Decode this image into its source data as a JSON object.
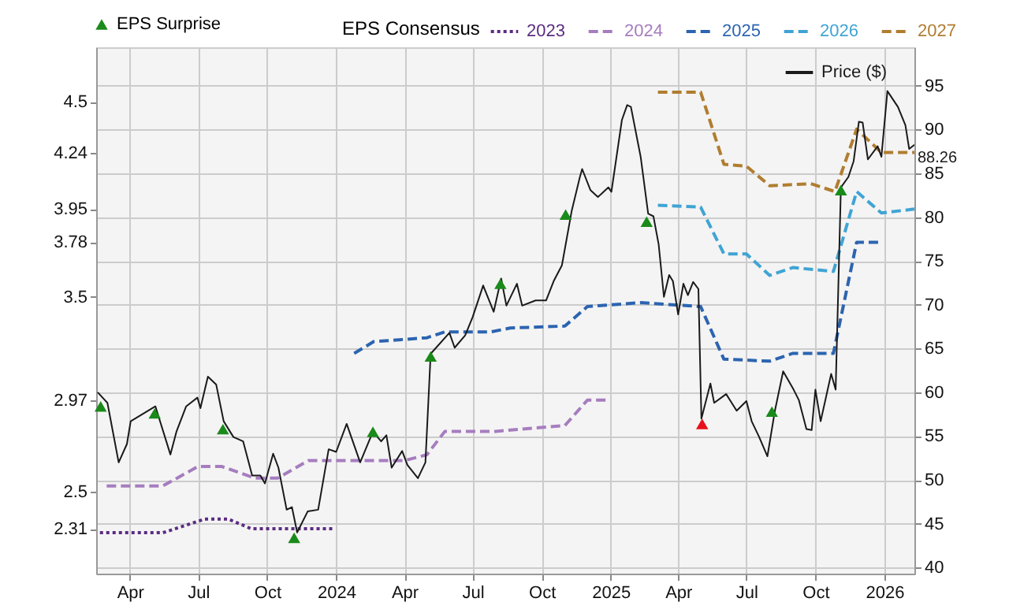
{
  "chart_data": {
    "type": "line",
    "legend": "top",
    "grid": true,
    "legend_title": "EPS Consensus",
    "xlim": [
      "2023-02-15",
      "2026-02-10"
    ],
    "xticks": [
      {
        "value": "2023-04-01",
        "label": "Apr"
      },
      {
        "value": "2023-07-01",
        "label": "Jul"
      },
      {
        "value": "2023-10-01",
        "label": "Oct"
      },
      {
        "value": "2024-01-01",
        "label": "2024"
      },
      {
        "value": "2024-04-01",
        "label": "Apr"
      },
      {
        "value": "2024-07-01",
        "label": "Jul"
      },
      {
        "value": "2024-10-01",
        "label": "Oct"
      },
      {
        "value": "2025-01-01",
        "label": "2025"
      },
      {
        "value": "2025-04-01",
        "label": "Apr"
      },
      {
        "value": "2025-07-01",
        "label": "Jul"
      },
      {
        "value": "2025-10-01",
        "label": "Oct"
      },
      {
        "value": "2026-01-01",
        "label": "2026"
      }
    ],
    "ylim": [
      2.08,
      4.78
    ],
    "yticks": [
      2.31,
      2.5,
      2.97,
      3.5,
      3.78,
      3.95,
      4.24,
      4.5
    ],
    "y2lim": [
      39.3,
      99.4
    ],
    "y2ticks": [
      40,
      45,
      50,
      55,
      60,
      65,
      70,
      75,
      80,
      85,
      90,
      95
    ],
    "series": [
      {
        "name": "2023",
        "type": "line",
        "line_style": "dotted",
        "color": "#5b2c82",
        "x": [
          "2023-02-20",
          "2023-05-15",
          "2023-07-10",
          "2023-08-10",
          "2023-09-10",
          "2023-12-28"
        ],
        "values": [
          2.29,
          2.29,
          2.36,
          2.36,
          2.31,
          2.31
        ]
      },
      {
        "name": "2024",
        "type": "line",
        "line_style": "dashed",
        "color": "#a67dbf",
        "x": [
          "2023-03-01",
          "2023-05-15",
          "2023-07-01",
          "2023-08-01",
          "2023-09-15",
          "2023-10-15",
          "2023-11-25",
          "2024-04-01",
          "2024-05-01",
          "2024-05-25",
          "2024-08-01",
          "2024-11-01",
          "2024-12-01",
          "2024-12-31"
        ],
        "values": [
          2.53,
          2.53,
          2.63,
          2.63,
          2.57,
          2.57,
          2.66,
          2.66,
          2.69,
          2.81,
          2.81,
          2.84,
          2.97,
          2.97
        ]
      },
      {
        "name": "2025",
        "type": "line",
        "line_style": "dashed",
        "color": "#2c64b0",
        "x": [
          "2024-01-25",
          "2024-02-20",
          "2024-05-01",
          "2024-05-25",
          "2024-07-25",
          "2024-08-20",
          "2024-11-01",
          "2024-12-01",
          "2025-02-10",
          "2025-05-01",
          "2025-06-01",
          "2025-08-01",
          "2025-09-01",
          "2025-10-25",
          "2025-11-25",
          "2025-12-28"
        ],
        "values": [
          3.21,
          3.27,
          3.29,
          3.32,
          3.32,
          3.34,
          3.35,
          3.45,
          3.47,
          3.45,
          3.18,
          3.17,
          3.21,
          3.21,
          3.78,
          3.78
        ]
      },
      {
        "name": "2026",
        "type": "line",
        "line_style": "dashed",
        "color": "#3fa4d4",
        "x": [
          "2025-03-05",
          "2025-05-01",
          "2025-06-01",
          "2025-07-01",
          "2025-08-01",
          "2025-09-01",
          "2025-10-25",
          "2025-11-25",
          "2025-12-28",
          "2026-02-10"
        ],
        "values": [
          3.97,
          3.96,
          3.72,
          3.72,
          3.61,
          3.65,
          3.63,
          4.04,
          3.93,
          3.95
        ]
      },
      {
        "name": "2027",
        "type": "line",
        "line_style": "dashed",
        "color": "#b07d30",
        "x": [
          "2025-03-05",
          "2025-05-01",
          "2025-06-01",
          "2025-07-01",
          "2025-08-01",
          "2025-09-25",
          "2025-10-27",
          "2025-11-25",
          "2025-12-28",
          "2026-02-10"
        ],
        "values": [
          4.55,
          4.55,
          4.18,
          4.17,
          4.07,
          4.08,
          4.04,
          4.36,
          4.24,
          4.24
        ]
      },
      {
        "name": "Price ($)",
        "type": "line",
        "axis": "y2",
        "line_style": "solid",
        "color": "#1a1a1a",
        "x": [
          "2023-02-17",
          "2023-03-02",
          "2023-03-17",
          "2023-03-28",
          "2023-04-02",
          "2023-05-05",
          "2023-05-25",
          "2023-06-02",
          "2023-06-15",
          "2023-06-30",
          "2023-07-04",
          "2023-07-14",
          "2023-07-25",
          "2023-08-04",
          "2023-08-17",
          "2023-08-30",
          "2023-09-11",
          "2023-09-22",
          "2023-09-28",
          "2023-10-09",
          "2023-10-16",
          "2023-10-27",
          "2023-11-03",
          "2023-11-10",
          "2023-11-24",
          "2023-12-08",
          "2023-12-22",
          "2024-01-01",
          "2024-01-15",
          "2024-02-02",
          "2024-02-19",
          "2024-03-01",
          "2024-03-08",
          "2024-03-15",
          "2024-03-29",
          "2024-04-05",
          "2024-04-19",
          "2024-04-29",
          "2024-05-06",
          "2024-05-31",
          "2024-06-07",
          "2024-06-21",
          "2024-07-01",
          "2024-07-15",
          "2024-07-29",
          "2024-08-08",
          "2024-08-15",
          "2024-08-29",
          "2024-09-05",
          "2024-09-23",
          "2024-10-07",
          "2024-10-17",
          "2024-10-28",
          "2024-11-10",
          "2024-11-21",
          "2024-11-24",
          "2024-12-05",
          "2024-12-15",
          "2024-12-29",
          "2025-01-02",
          "2025-01-16",
          "2025-01-23",
          "2025-01-28",
          "2025-02-10",
          "2025-02-20",
          "2025-02-27",
          "2025-03-06",
          "2025-03-13",
          "2025-03-20",
          "2025-03-25",
          "2025-04-01",
          "2025-04-08",
          "2025-04-14",
          "2025-04-21",
          "2025-04-28",
          "2025-05-02",
          "2025-05-14",
          "2025-05-19",
          "2025-06-04",
          "2025-06-18",
          "2025-07-01",
          "2025-07-08",
          "2025-07-18",
          "2025-07-29",
          "2025-08-08",
          "2025-08-19",
          "2025-09-02",
          "2025-09-09",
          "2025-09-19",
          "2025-09-26",
          "2025-10-01",
          "2025-10-08",
          "2025-10-22",
          "2025-10-28",
          "2025-11-04",
          "2025-11-14",
          "2025-11-21",
          "2025-11-28",
          "2025-12-03",
          "2025-12-10",
          "2025-12-23",
          "2025-12-28",
          "2026-01-05",
          "2026-01-19",
          "2026-01-29",
          "2026-02-03",
          "2026-02-10"
        ],
        "values": [
          60.0,
          58.8,
          52.0,
          54.1,
          56.7,
          58.4,
          52.9,
          55.5,
          58.4,
          59.4,
          58.2,
          61.8,
          60.9,
          56.7,
          54.9,
          54.4,
          50.5,
          50.5,
          49.6,
          53.0,
          51.4,
          46.6,
          46.9,
          44.0,
          46.4,
          46.6,
          53.5,
          53.2,
          56.4,
          52.0,
          55.5,
          54.4,
          55.1,
          51.4,
          53.3,
          51.7,
          50.2,
          52.0,
          64.4,
          66.8,
          65.1,
          66.5,
          68.6,
          72.2,
          69.2,
          73.0,
          69.9,
          72.4,
          69.9,
          70.5,
          70.5,
          72.7,
          74.5,
          80.7,
          84.6,
          85.5,
          83.1,
          82.3,
          83.4,
          82.9,
          91.1,
          92.8,
          92.6,
          86.9,
          80.4,
          80.1,
          76.9,
          70.9,
          73.4,
          72.7,
          68.9,
          72.4,
          71.1,
          72.6,
          71.8,
          57.0,
          61.0,
          58.8,
          59.8,
          57.9,
          59.0,
          56.7,
          54.9,
          52.7,
          57.9,
          62.4,
          60.3,
          59.1,
          55.8,
          55.7,
          60.3,
          56.7,
          62.1,
          60.3,
          83.4,
          84.6,
          86.4,
          90.9,
          90.8,
          86.6,
          88.1,
          86.9,
          94.4,
          92.6,
          90.5,
          87.8,
          88.26
        ],
        "value_labels": [
          null,
          null,
          null,
          null,
          null,
          null,
          null,
          null,
          null,
          null,
          null,
          null,
          null,
          null,
          null,
          null,
          null,
          null,
          null,
          null,
          null,
          null,
          null,
          null,
          null,
          null,
          null,
          null,
          null,
          null,
          null,
          null,
          null,
          null,
          null,
          null,
          null,
          null,
          null,
          null,
          null,
          null,
          null,
          null,
          null,
          null,
          null,
          null,
          null,
          null,
          null,
          null,
          null,
          null,
          null,
          null,
          null,
          null,
          null,
          null,
          null,
          null,
          null,
          null,
          null,
          null,
          null,
          null,
          null,
          null,
          null,
          null,
          null,
          null,
          null,
          null,
          null,
          null,
          null,
          null,
          null,
          null,
          null,
          null,
          null,
          null,
          null,
          null,
          null,
          null,
          null,
          null,
          null,
          null,
          null,
          null,
          null,
          null,
          null,
          null,
          null,
          null,
          null,
          null,
          null,
          null,
          "88.26"
        ]
      },
      {
        "name": "EPS Surprise",
        "type": "scatter",
        "axis": "y2",
        "marker": "triangle",
        "color": "#1a8a1a",
        "x": [
          "2023-02-21",
          "2023-05-04",
          "2023-08-03",
          "2023-11-06",
          "2024-02-19",
          "2024-05-06",
          "2024-08-07",
          "2024-11-02",
          "2025-02-18",
          "2025-08-04",
          "2025-11-04"
        ],
        "values": [
          58.4,
          57.6,
          55.8,
          43.4,
          55.5,
          64.1,
          72.4,
          80.3,
          79.5,
          57.8,
          83.1
        ]
      },
      {
        "type": "scatter",
        "axis": "y2",
        "marker": "triangle",
        "color": "#e8101a",
        "x": [
          "2025-05-03"
        ],
        "values": [
          56.4
        ]
      }
    ]
  }
}
